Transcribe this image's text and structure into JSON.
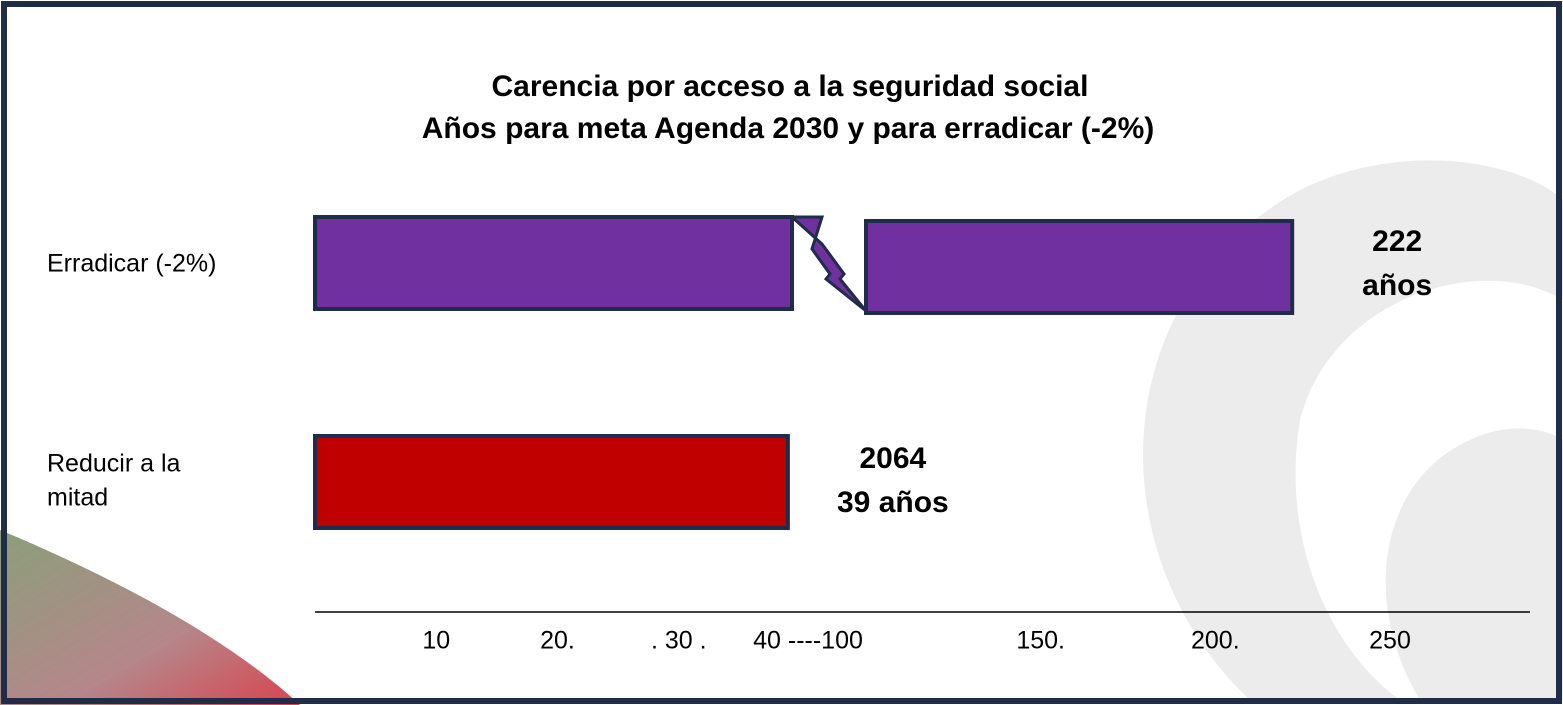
{
  "chart_data": {
    "type": "broken-hbar",
    "title": "Carencia por acceso a la seguridad social",
    "subtitle": "Años para meta Agenda 2030 y para erradicar (-2%)",
    "categories": [
      [
        "Erradicar (-2%)"
      ],
      [
        "Reducir a la",
        "mitad"
      ]
    ],
    "values": [
      222,
      39
    ],
    "value_labels": [
      [
        "222",
        "años"
      ],
      [
        "2064",
        "39 años"
      ]
    ],
    "colors": [
      "#7030a0",
      "#c00000"
    ],
    "axis_break": [
      40,
      100
    ],
    "xlim": [
      0,
      250
    ],
    "xticks": [
      10,
      {
        "value": 20,
        "label": "20."
      },
      {
        "value": 30,
        "label": ". 30 ."
      },
      {
        "value": 40,
        "label": "40 ----100"
      },
      {
        "value": 150,
        "label": "150."
      },
      {
        "value": 200,
        "label": "200."
      },
      250
    ]
  }
}
